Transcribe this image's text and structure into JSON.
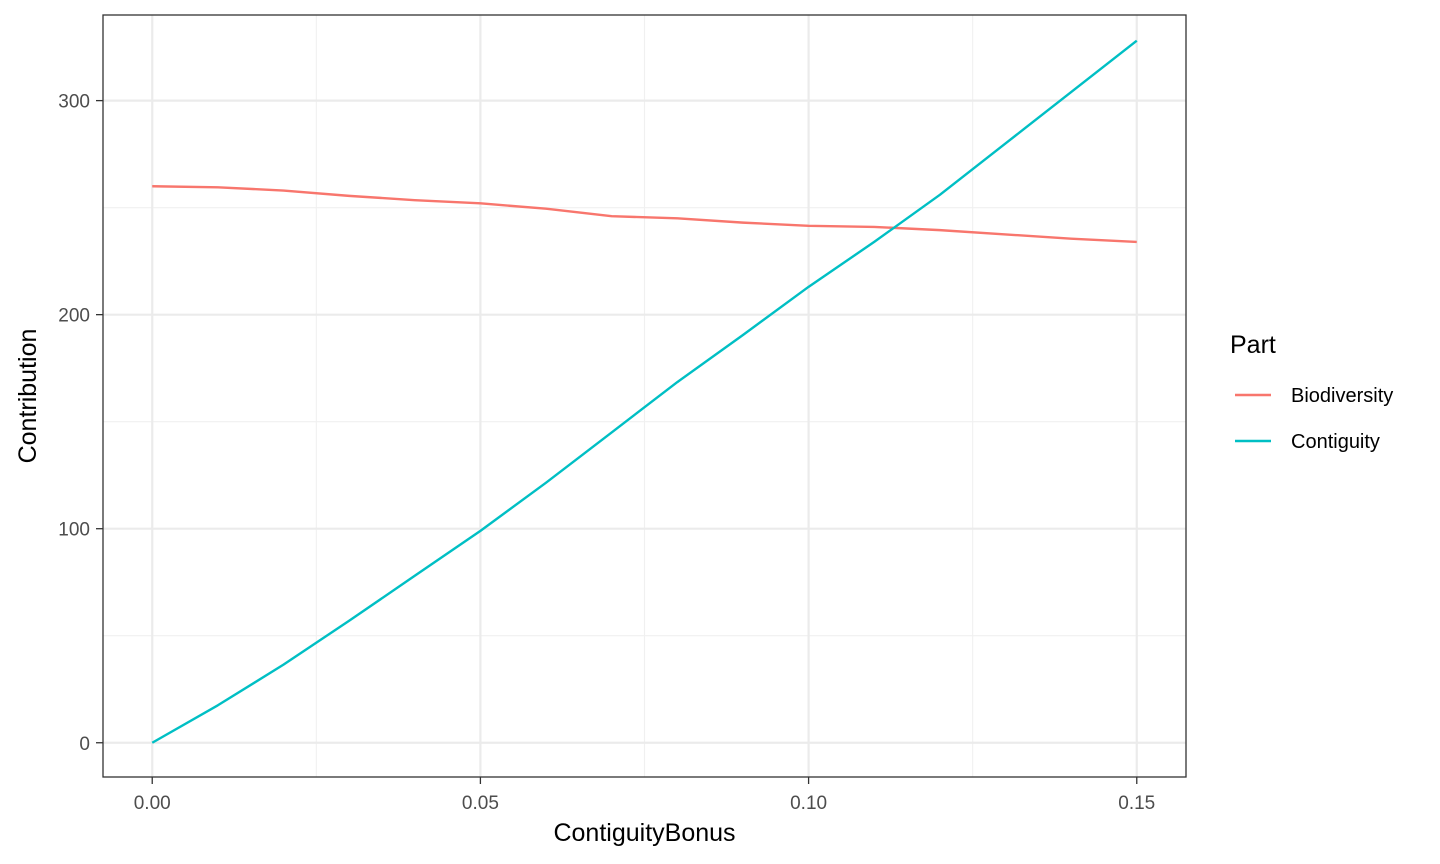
{
  "chart_data": {
    "type": "line",
    "xlabel": "ContiguityBonus",
    "ylabel": "Contribution",
    "xlim": [
      -0.0075,
      0.1575
    ],
    "ylim": [
      -16,
      340
    ],
    "x_ticks": [
      0.0,
      0.05,
      0.1,
      0.15
    ],
    "x_tick_labels": [
      "0.00",
      "0.05",
      "0.10",
      "0.15"
    ],
    "x_minor_ticks": [
      0.025,
      0.075,
      0.125
    ],
    "y_ticks": [
      0,
      100,
      200,
      300
    ],
    "y_tick_labels": [
      "0",
      "100",
      "200",
      "300"
    ],
    "y_minor_ticks": [
      50,
      150,
      250
    ],
    "grid": true,
    "legend": {
      "title": "Part",
      "placement": "right"
    },
    "x": [
      0.0,
      0.01,
      0.02,
      0.03,
      0.04,
      0.05,
      0.06,
      0.07,
      0.08,
      0.09,
      0.1,
      0.11,
      0.12,
      0.13,
      0.14,
      0.15
    ],
    "series": [
      {
        "name": "Biodiversity",
        "color": "#F8766D",
        "values": [
          260,
          259.5,
          258,
          255.5,
          253.5,
          252,
          249.5,
          246,
          245,
          243,
          241.5,
          241,
          239.5,
          237.5,
          235.5,
          234
        ]
      },
      {
        "name": "Contiguity",
        "color": "#00BFC4",
        "values": [
          0,
          17.5,
          36.5,
          57,
          78,
          99,
          121.5,
          145,
          168.5,
          190.5,
          213,
          234,
          256,
          280,
          304,
          328
        ]
      }
    ]
  }
}
